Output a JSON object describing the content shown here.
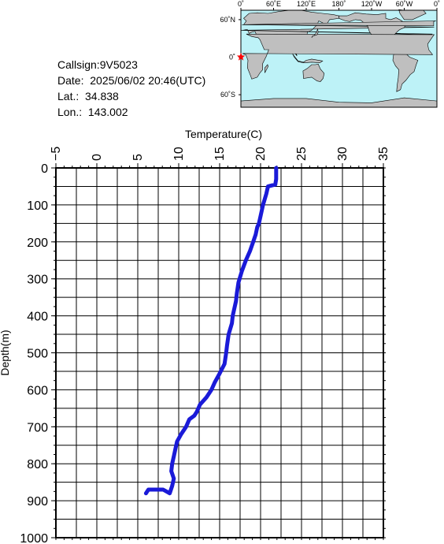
{
  "info": {
    "callsign": "Callsign:9V5023",
    "date": "Date:  2025/06/02 20:46(UTC)",
    "lat": "Lat.:  34.838",
    "lon": "Lon.:  143.002"
  },
  "map": {
    "lon_labels": [
      "0˚",
      "60˚E",
      "120˚E",
      "180˚",
      "120˚W",
      "60˚W",
      "0˚"
    ],
    "lat_labels": [
      "60˚N",
      "0˚",
      "60˚S"
    ],
    "colors": {
      "ocean": "#bdf2f7",
      "land": "#bfbfbf",
      "marker": "#ff0000"
    },
    "marker_icon": "red-star"
  },
  "chart_data": {
    "type": "line",
    "xlabel": "Temperature(C)",
    "ylabel": "Depth(m)",
    "xlim": [
      -5,
      35
    ],
    "ylim": [
      0,
      1000
    ],
    "x_axis_position": "top",
    "y_inverted": true,
    "x_ticks": [
      "−5",
      "0",
      "5",
      "10",
      "15",
      "20",
      "25",
      "30",
      "35"
    ],
    "y_ticks": [
      "0",
      "100",
      "200",
      "300",
      "400",
      "500",
      "600",
      "700",
      "800",
      "900",
      "1000"
    ],
    "grid": true,
    "line_color": "#1a1ad8",
    "series": [
      {
        "x": [
          21.9,
          21.9,
          21.8,
          20.9,
          20.7,
          20.3,
          20.0,
          19.8,
          19.6,
          19.4,
          19.1,
          18.7,
          18.2,
          17.7,
          17.3,
          17.1,
          17.0,
          16.8,
          16.6,
          16.5,
          16.1,
          15.9,
          15.8,
          15.6,
          14.9,
          14.4,
          14.0,
          13.4,
          12.6,
          12.2,
          11.9,
          11.3,
          10.9,
          10.3,
          9.8,
          9.6,
          9.4,
          9.2,
          9.1,
          9.4,
          9.2,
          8.9,
          8.1,
          7.7,
          7.5,
          7.2,
          6.9,
          6.6,
          6.3,
          6.0
        ],
        "y": [
          0,
          30,
          45,
          50,
          70,
          100,
          130,
          150,
          160,
          180,
          200,
          225,
          250,
          280,
          310,
          340,
          360,
          380,
          400,
          420,
          450,
          480,
          500,
          530,
          560,
          580,
          600,
          620,
          640,
          660,
          670,
          680,
          700,
          720,
          740,
          760,
          780,
          800,
          820,
          840,
          860,
          880,
          870,
          870,
          870,
          870,
          870,
          870,
          870,
          880
        ]
      }
    ]
  }
}
